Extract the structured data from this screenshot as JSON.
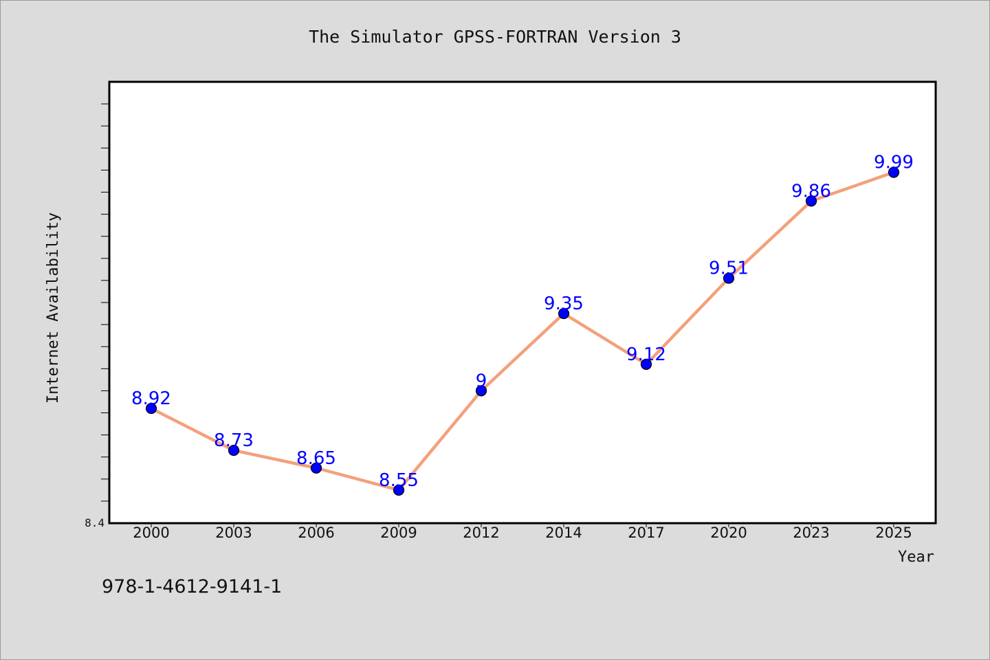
{
  "chart_data": {
    "type": "line",
    "title": "The Simulator GPSS-FORTRAN Version 3",
    "xlabel": "Year",
    "ylabel": "Internet Availability",
    "categories": [
      "2000",
      "2003",
      "2006",
      "2009",
      "2012",
      "2014",
      "2017",
      "2020",
      "2023",
      "2025"
    ],
    "values": [
      8.92,
      8.73,
      8.65,
      8.55,
      9.0,
      9.35,
      9.12,
      9.51,
      9.86,
      9.99
    ],
    "value_labels": [
      "8.92",
      "8.73",
      "8.65",
      "8.55",
      "9",
      "9.35",
      "9.12",
      "9.51",
      "9.86",
      "9.99"
    ],
    "ylim": [
      8.4,
      10.4
    ],
    "y_min_label": "8.4",
    "grid": false,
    "line_color": "#f4a07c",
    "marker_color": "#0000ff",
    "label_color": "#0000ff"
  },
  "footer": {
    "isbn": "978-1-4612-9141-1"
  }
}
